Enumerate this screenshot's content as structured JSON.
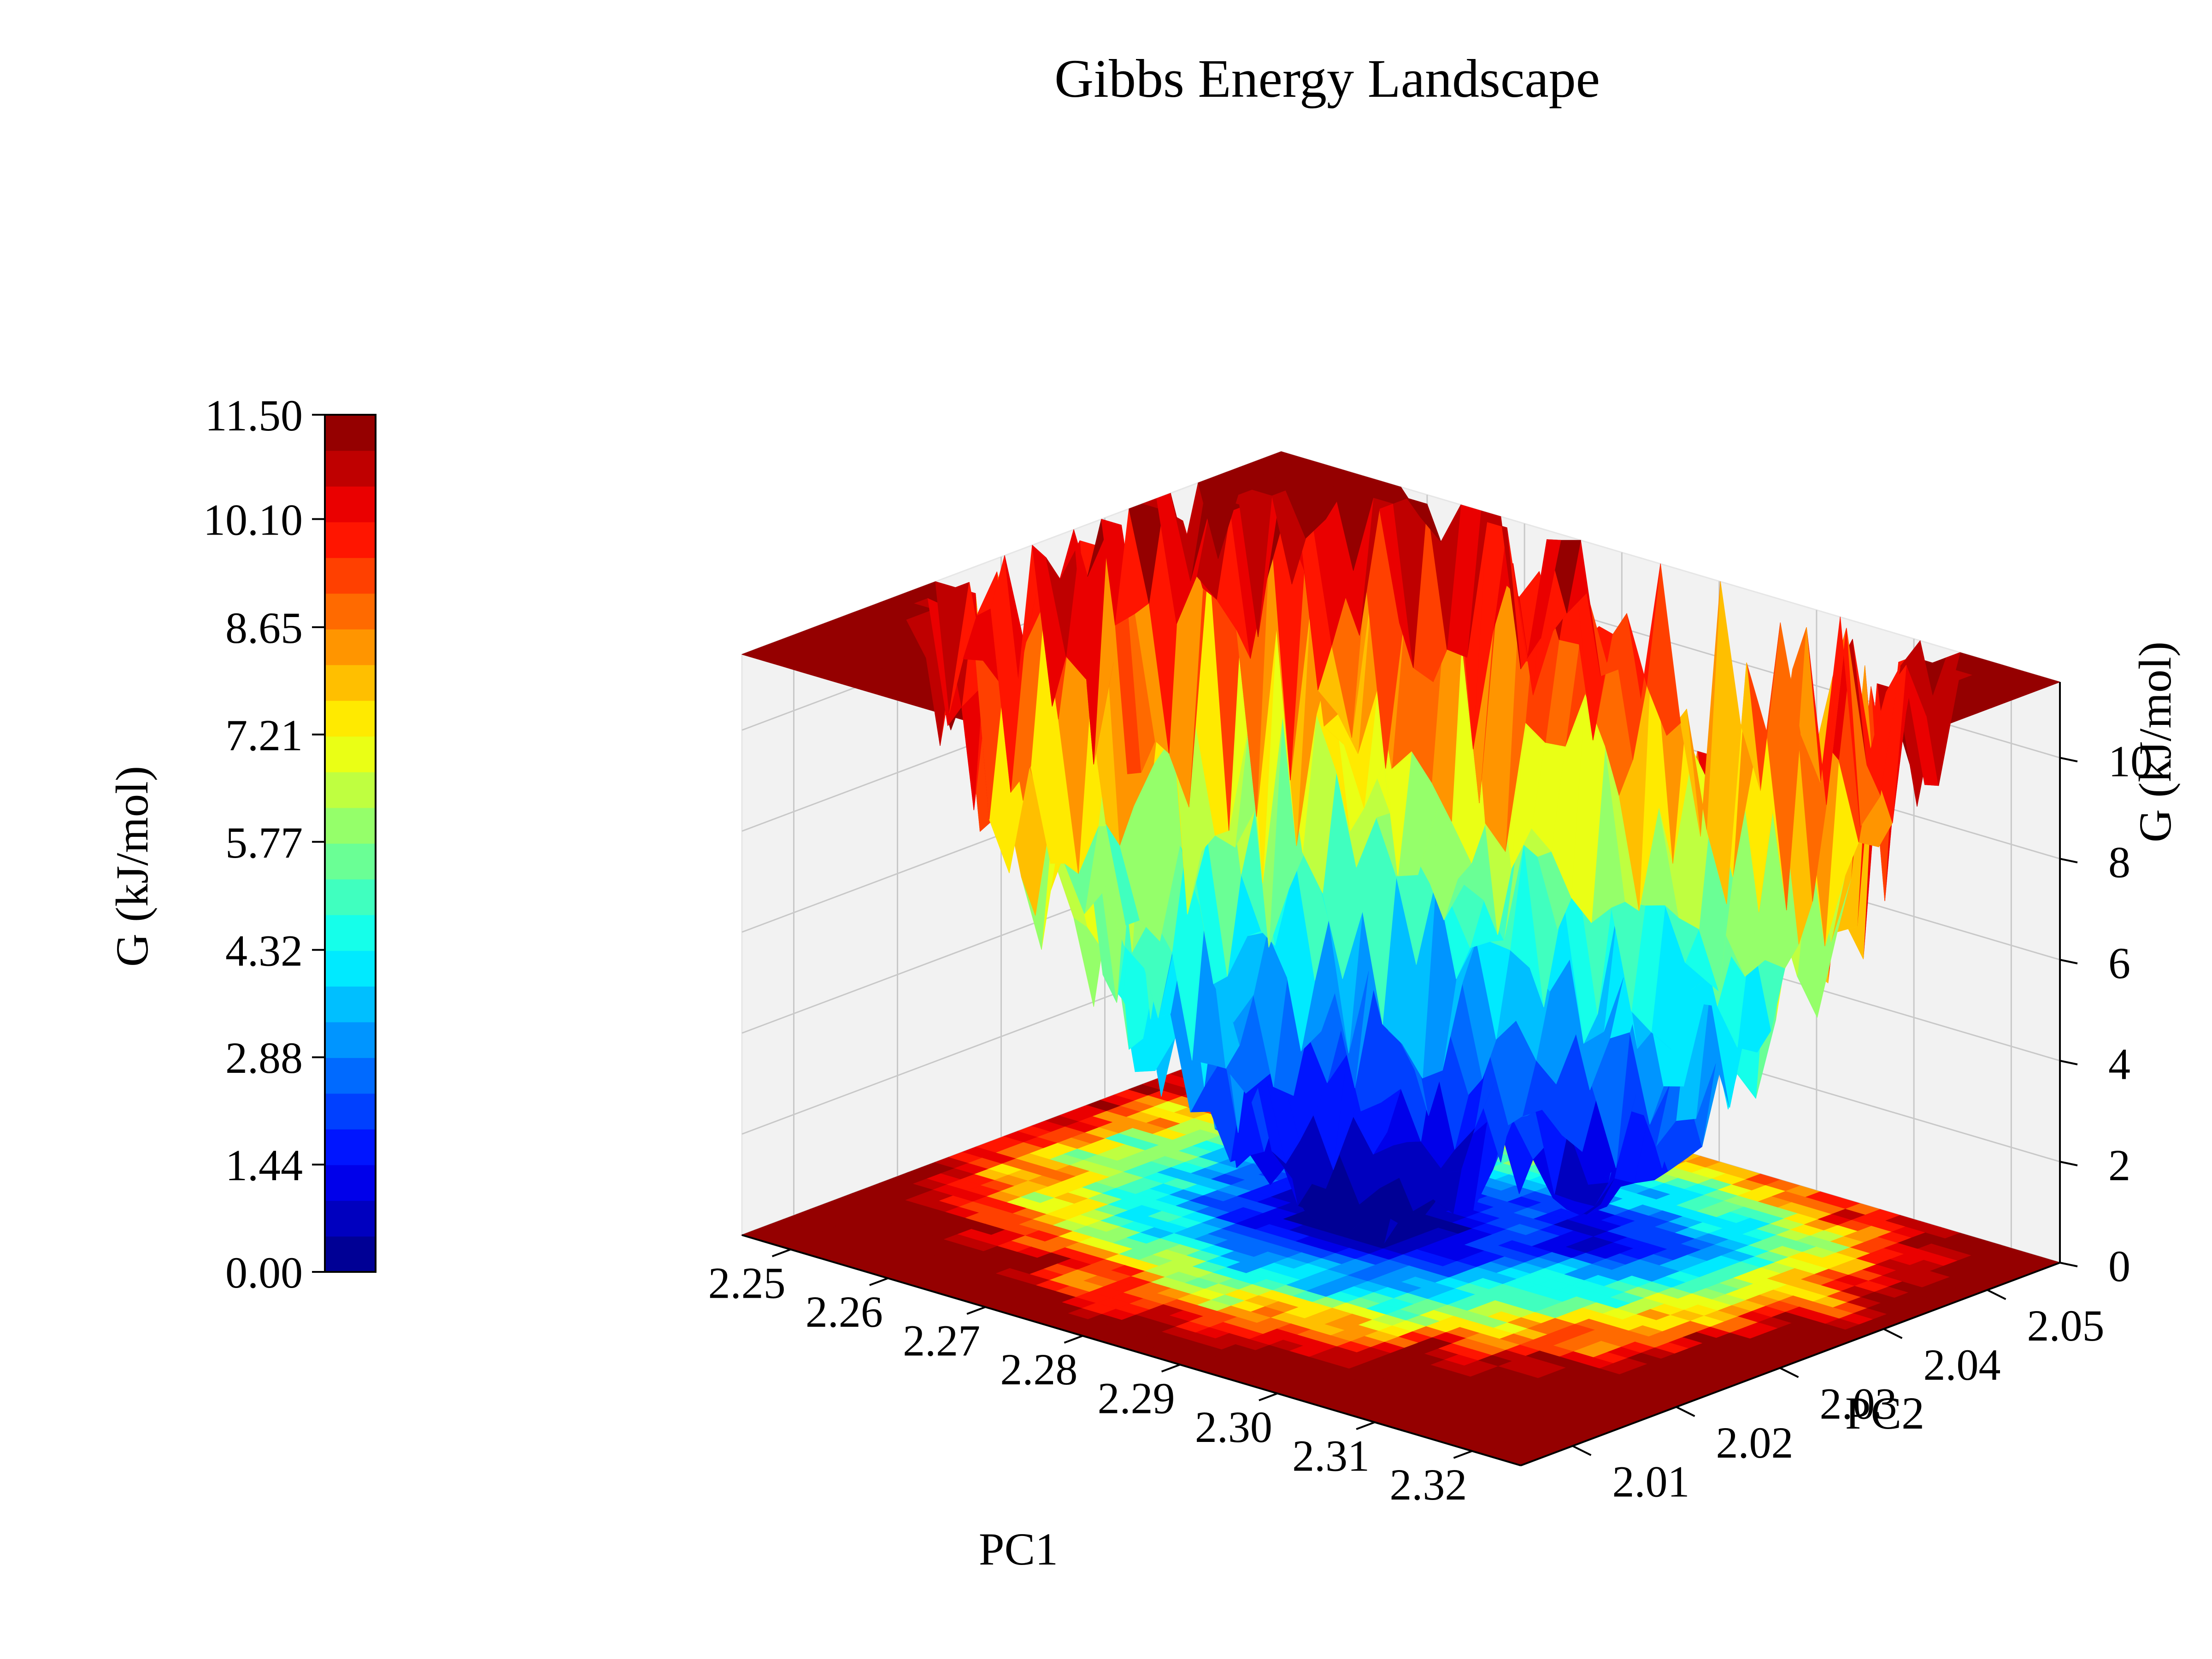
{
  "chart_data": {
    "type": "surface3d",
    "title": "Gibbs Energy Landscape",
    "xlabel": "PC1",
    "ylabel": "PC2",
    "zlabel": "G (kJ/mol)",
    "x_ticks": [
      "2.25",
      "2.26",
      "2.27",
      "2.28",
      "2.29",
      "2.30",
      "2.31",
      "2.32"
    ],
    "y_ticks": [
      "2.01",
      "2.02",
      "2.03",
      "2.04",
      "2.05"
    ],
    "z_ticks": [
      "0",
      "2",
      "4",
      "6",
      "8",
      "10"
    ],
    "xlim": [
      2.245,
      2.325
    ],
    "ylim": [
      2.005,
      2.057
    ],
    "zlim": [
      0,
      11.5
    ],
    "colormap": "jet",
    "colorbar": {
      "label": "G (kJ/mol)",
      "ticks": [
        "0.00",
        "1.44",
        "2.88",
        "4.32",
        "5.77",
        "7.21",
        "8.65",
        "10.10",
        "11.50"
      ],
      "range": [
        0,
        11.5
      ],
      "levels": 24,
      "placement": "left"
    },
    "surface": {
      "cap": 11.5,
      "minima": [
        {
          "pc1": 2.2795,
          "pc2": 2.034,
          "G": 0.0
        },
        {
          "pc1": 2.2935,
          "pc2": 2.041,
          "G": 1.2
        }
      ]
    },
    "projection": "filled contour at z = 0",
    "grid": true
  }
}
